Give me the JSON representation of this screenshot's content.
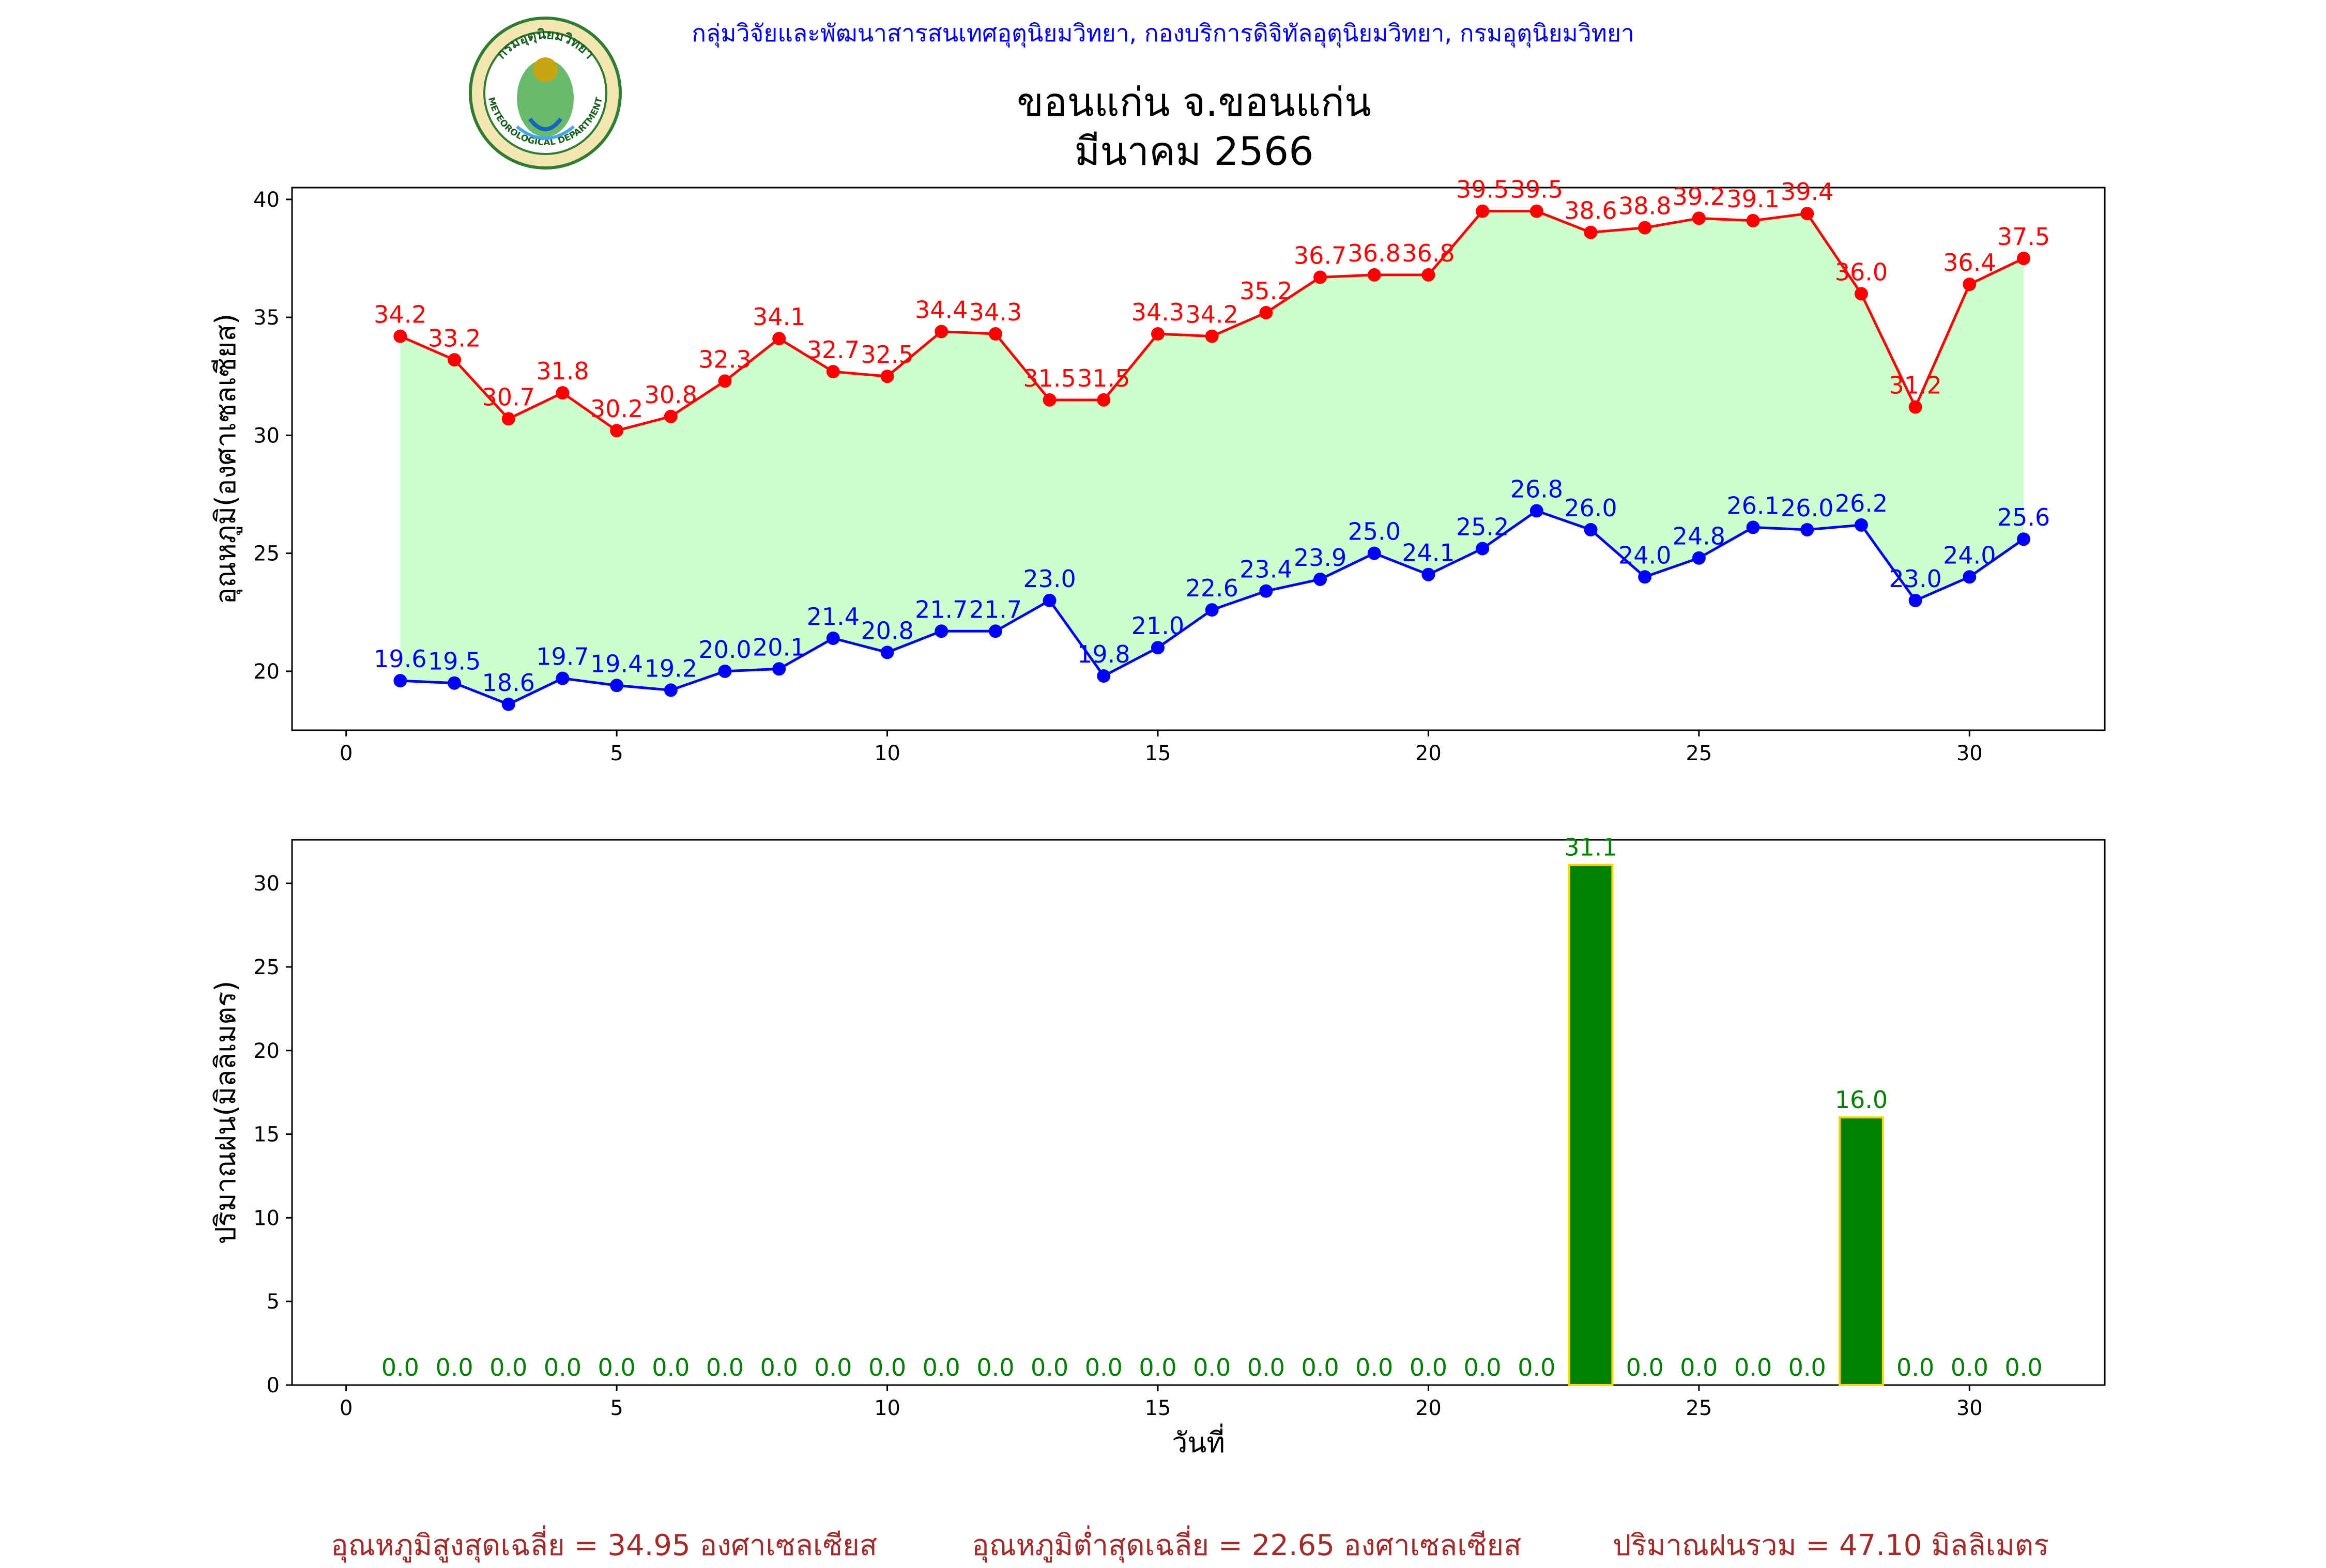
{
  "header": {
    "department_text": "กลุ่มวิจัยและพัฒนาสารสนเทศอุตุนิยมวิทยา, กองบริการดิจิทัลอุตุนิยมวิทยา, กรมอุตุนิยมวิทยา",
    "logo_top_text": "กรมอุตุนิยมวิทยา",
    "logo_bottom_text": "METEOROLOGICAL DEPARTMENT"
  },
  "title": {
    "line1": "ขอนแก่น จ.ขอนแก่น",
    "line2": "มีนาคม 2566"
  },
  "chart_data": [
    {
      "type": "line",
      "title": "ขอนแก่น จ.ขอนแก่น มีนาคม 2566",
      "xlabel": "",
      "ylabel": "อุณหภูมิ(องศาเซลเซียส)",
      "xlim": [
        -1,
        32.5
      ],
      "ylim": [
        17.5,
        40.5
      ],
      "xticks": [
        0,
        5,
        10,
        15,
        20,
        25,
        30
      ],
      "yticks": [
        20,
        25,
        30,
        35,
        40
      ],
      "fill_between": true,
      "fill_color": "#ccffcc",
      "x": [
        1,
        2,
        3,
        4,
        5,
        6,
        7,
        8,
        9,
        10,
        11,
        12,
        13,
        14,
        15,
        16,
        17,
        18,
        19,
        20,
        21,
        22,
        23,
        24,
        25,
        26,
        27,
        28,
        29,
        30,
        31
      ],
      "series": [
        {
          "name": "max",
          "color": "#ff0000",
          "values": [
            34.2,
            33.2,
            30.7,
            31.8,
            30.2,
            30.8,
            32.3,
            34.1,
            32.7,
            32.5,
            34.4,
            34.3,
            31.5,
            31.5,
            34.3,
            34.2,
            35.2,
            36.7,
            36.8,
            36.8,
            39.5,
            39.5,
            38.6,
            38.8,
            39.2,
            39.1,
            39.4,
            36.0,
            31.2,
            36.4,
            37.5
          ]
        },
        {
          "name": "min",
          "color": "#0000ff",
          "values": [
            19.6,
            19.5,
            18.6,
            19.7,
            19.4,
            19.2,
            20.0,
            20.1,
            21.4,
            20.8,
            21.7,
            21.7,
            23.0,
            19.8,
            21.0,
            22.6,
            23.4,
            23.9,
            25.0,
            24.1,
            25.2,
            26.8,
            26.0,
            24.0,
            24.8,
            26.1,
            26.0,
            26.2,
            23.0,
            24.0,
            25.6
          ]
        }
      ]
    },
    {
      "type": "bar",
      "title": "",
      "xlabel": "วันที่",
      "ylabel": "ปริมาณฝน(มิลลิเมตร)",
      "xlim": [
        -1,
        32.5
      ],
      "ylim": [
        0,
        32.6
      ],
      "xticks": [
        0,
        5,
        10,
        15,
        20,
        25,
        30
      ],
      "yticks": [
        0,
        5,
        10,
        15,
        20,
        25,
        30
      ],
      "bar_color": "#008000",
      "bar_edge_color": "#ffd700",
      "label_color": "#008000",
      "x": [
        1,
        2,
        3,
        4,
        5,
        6,
        7,
        8,
        9,
        10,
        11,
        12,
        13,
        14,
        15,
        16,
        17,
        18,
        19,
        20,
        21,
        22,
        23,
        24,
        25,
        26,
        27,
        28,
        29,
        30,
        31
      ],
      "values": [
        0.0,
        0.0,
        0.0,
        0.0,
        0.0,
        0.0,
        0.0,
        0.0,
        0.0,
        0.0,
        0.0,
        0.0,
        0.0,
        0.0,
        0.0,
        0.0,
        0.0,
        0.0,
        0.0,
        0.0,
        0.0,
        0.0,
        31.1,
        0.0,
        0.0,
        0.0,
        0.0,
        16.0,
        0.0,
        0.0,
        0.0
      ]
    }
  ],
  "summary": {
    "avg_max_text": "อุณหภูมิสูงสุดเฉลี่ย = 34.95 องศาเซลเซียส",
    "avg_min_text": "อุณหภูมิต่ำสุดเฉลี่ย = 22.65 องศาเซลเซียส",
    "total_rain_text": "ปริมาณฝนรวม = 47.10 มิลลิเมตร"
  },
  "colors": {
    "summary": "#a52a2a",
    "header": "#0000ff"
  }
}
